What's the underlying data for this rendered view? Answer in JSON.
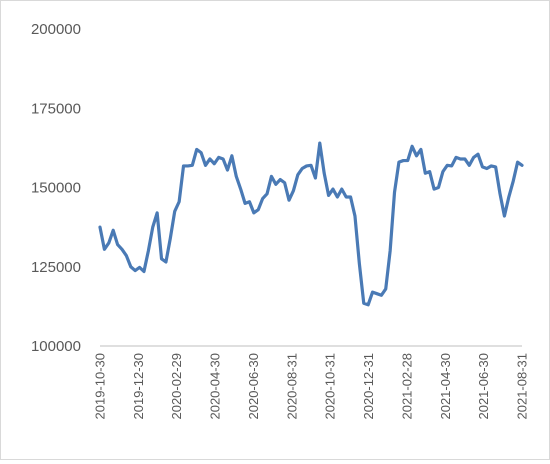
{
  "chart_data": {
    "type": "line",
    "title": "",
    "xlabel": "",
    "ylabel": "",
    "ylim": [
      100000,
      200000
    ],
    "yticks": [
      "200000",
      "175000",
      "150000",
      "125000",
      "100000"
    ],
    "xticks": [
      "2019-10-30",
      "2019-12-30",
      "2020-02-29",
      "2020-04-30",
      "2020-06-30",
      "2020-08-31",
      "2020-10-31",
      "2020-12-31",
      "2021-02-28",
      "2021-04-30",
      "2021-06-30",
      "2021-08-31"
    ],
    "grid": false,
    "legend": "none",
    "line_color": "#4a7ab5",
    "series": [
      {
        "values": [
          137500,
          130500,
          132500,
          136500,
          132000,
          130500,
          128500,
          125000,
          123800,
          124800,
          123500,
          130000,
          137500,
          142000,
          127500,
          126500,
          134000,
          142500,
          145500,
          156800,
          156800,
          157000,
          162000,
          161000,
          157000,
          159000,
          157500,
          159500,
          159000,
          155500,
          160000,
          153500,
          149500,
          145000,
          145500,
          142000,
          143000,
          146500,
          148000,
          153500,
          151000,
          152500,
          151500,
          146000,
          149000,
          154000,
          156000,
          156800,
          157000,
          153000,
          164000,
          154500,
          147500,
          149500,
          147000,
          149500,
          147000,
          147000,
          141000,
          126000,
          113500,
          113000,
          117000,
          116500,
          116000,
          118000,
          130000,
          148500,
          158000,
          158500,
          158500,
          163000,
          160000,
          162000,
          154500,
          155000,
          149500,
          150000,
          155000,
          157000,
          156800,
          159500,
          159000,
          159000,
          157000,
          159500,
          160500,
          156500,
          156000,
          156800,
          156500,
          148000,
          141000,
          147000,
          152000,
          158000,
          157000
        ]
      }
    ]
  }
}
